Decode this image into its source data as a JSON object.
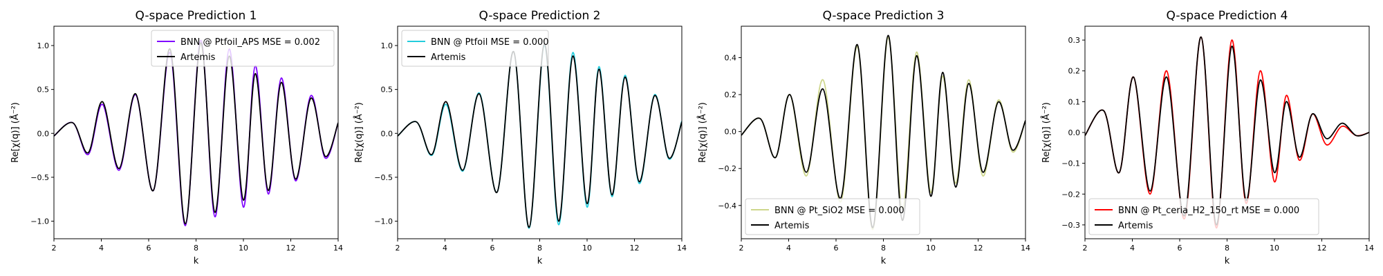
{
  "chart_data": [
    {
      "type": "line",
      "title": "Q-space Prediction 1",
      "xlabel": "k",
      "ylabel": "Re[χ(q)] (Å⁻²)",
      "xlim": [
        2,
        14
      ],
      "ylim": [
        -1.2,
        1.22
      ],
      "xticks": [
        2,
        4,
        6,
        8,
        10,
        12,
        14
      ],
      "yticks": [
        -1.0,
        -0.5,
        0.0,
        0.5,
        1.0
      ],
      "grid": false,
      "legend_loc": "upper right",
      "series": [
        {
          "name": "BNN @ Ptfoil_APS MSE = 0.002",
          "color": "#7f00ff",
          "x": [
            2,
            2.8,
            3.45,
            4.05,
            4.75,
            5.45,
            6.2,
            6.9,
            7.55,
            8.2,
            8.8,
            9.4,
            10.0,
            10.5,
            11.05,
            11.6,
            12.2,
            12.85,
            13.45,
            14
          ],
          "y": [
            -0.03,
            0.12,
            -0.24,
            0.33,
            -0.42,
            0.44,
            -0.65,
            0.92,
            -1.05,
            1.06,
            -0.95,
            0.96,
            -0.84,
            0.77,
            -0.69,
            0.63,
            -0.54,
            0.43,
            -0.28,
            0.12
          ]
        },
        {
          "name": "Artemis",
          "color": "#000000",
          "x": [
            2,
            2.8,
            3.45,
            4.05,
            4.75,
            5.45,
            6.2,
            6.9,
            7.55,
            8.2,
            8.8,
            9.4,
            10.0,
            10.5,
            11.05,
            11.6,
            12.2,
            12.85,
            13.45,
            14
          ],
          "y": [
            -0.03,
            0.12,
            -0.22,
            0.36,
            -0.4,
            0.45,
            -0.65,
            0.96,
            -1.03,
            1.03,
            -0.9,
            0.88,
            -0.76,
            0.68,
            -0.65,
            0.58,
            -0.52,
            0.4,
            -0.26,
            0.12
          ]
        }
      ]
    },
    {
      "type": "line",
      "title": "Q-space Prediction 2",
      "xlabel": "k",
      "ylabel": "Re[χ(q)] (Å⁻²)",
      "xlim": [
        2,
        14
      ],
      "ylim": [
        -1.2,
        1.22
      ],
      "xticks": [
        2,
        4,
        6,
        8,
        10,
        12,
        14
      ],
      "yticks": [
        -1.0,
        -0.5,
        0.0,
        0.5,
        1.0
      ],
      "grid": false,
      "legend_loc": "upper left",
      "series": [
        {
          "name": "BNN @ Ptfoil MSE = 0.000",
          "color": "#22ccdd",
          "x": [
            2,
            2.8,
            3.45,
            4.05,
            4.75,
            5.45,
            6.2,
            6.9,
            7.55,
            8.2,
            8.8,
            9.4,
            10.0,
            10.5,
            11.05,
            11.6,
            12.2,
            12.85,
            13.45,
            14
          ],
          "y": [
            -0.03,
            0.13,
            -0.25,
            0.33,
            -0.43,
            0.46,
            -0.67,
            0.93,
            -1.08,
            1.0,
            -1.04,
            0.92,
            -0.84,
            0.76,
            -0.72,
            0.66,
            -0.57,
            0.44,
            -0.29,
            0.14
          ]
        },
        {
          "name": "Artemis",
          "color": "#000000",
          "x": [
            2,
            2.8,
            3.45,
            4.05,
            4.75,
            5.45,
            6.2,
            6.9,
            7.55,
            8.2,
            8.8,
            9.4,
            10.0,
            10.5,
            11.05,
            11.6,
            12.2,
            12.85,
            13.45,
            14
          ],
          "y": [
            -0.03,
            0.13,
            -0.24,
            0.36,
            -0.42,
            0.45,
            -0.67,
            0.93,
            -1.07,
            1.02,
            -1.0,
            0.88,
            -0.8,
            0.73,
            -0.7,
            0.64,
            -0.55,
            0.43,
            -0.28,
            0.13
          ]
        }
      ]
    },
    {
      "type": "line",
      "title": "Q-space Prediction 3",
      "xlabel": "k",
      "ylabel": "Re[χ(q)] (Å⁻²)",
      "xlim": [
        2,
        14
      ],
      "ylim": [
        -0.58,
        0.57
      ],
      "xticks": [
        2,
        4,
        6,
        8,
        10,
        12,
        14
      ],
      "yticks": [
        -0.4,
        -0.2,
        0.0,
        0.2,
        0.4
      ],
      "grid": false,
      "legend_loc": "lower left",
      "series": [
        {
          "name": "BNN @ Pt_SiO2 MSE = 0.000",
          "color": "#cdd68a",
          "x": [
            2,
            2.8,
            3.45,
            4.05,
            4.75,
            5.45,
            6.2,
            6.9,
            7.55,
            8.2,
            8.8,
            9.4,
            10.0,
            10.5,
            11.05,
            11.6,
            12.2,
            12.85,
            13.45,
            14
          ],
          "y": [
            -0.02,
            0.07,
            -0.14,
            0.2,
            -0.24,
            0.28,
            -0.38,
            0.46,
            -0.53,
            0.51,
            -0.42,
            0.43,
            -0.33,
            0.3,
            -0.28,
            0.28,
            -0.24,
            0.17,
            -0.11,
            0.06
          ]
        },
        {
          "name": "Artemis",
          "color": "#000000",
          "x": [
            2,
            2.8,
            3.45,
            4.05,
            4.75,
            5.45,
            6.2,
            6.9,
            7.55,
            8.2,
            8.8,
            9.4,
            10.0,
            10.5,
            11.05,
            11.6,
            12.2,
            12.85,
            13.45,
            14
          ],
          "y": [
            -0.02,
            0.07,
            -0.14,
            0.2,
            -0.22,
            0.23,
            -0.36,
            0.47,
            -0.52,
            0.52,
            -0.48,
            0.41,
            -0.35,
            0.32,
            -0.3,
            0.26,
            -0.22,
            0.16,
            -0.1,
            0.06
          ]
        }
      ]
    },
    {
      "type": "line",
      "title": "Q-space Prediction 4",
      "xlabel": "k",
      "ylabel": "Re[χ(q)] (Å⁻²)",
      "xlim": [
        2,
        14
      ],
      "ylim": [
        -0.345,
        0.345
      ],
      "xticks": [
        2,
        4,
        6,
        8,
        10,
        12,
        14
      ],
      "yticks": [
        -0.3,
        -0.2,
        -0.1,
        0.0,
        0.1,
        0.2,
        0.3
      ],
      "grid": false,
      "legend_loc": "lower left",
      "series": [
        {
          "name": "BNN @ Pt_ceria_H2_150_rt MSE = 0.000",
          "color": "#ff0000",
          "x": [
            2,
            2.8,
            3.45,
            4.05,
            4.75,
            5.45,
            6.2,
            6.9,
            7.55,
            8.2,
            8.8,
            9.4,
            10.0,
            10.5,
            11.05,
            11.6,
            12.2,
            12.85,
            13.45,
            14
          ],
          "y": [
            -0.01,
            0.07,
            -0.13,
            0.18,
            -0.2,
            0.2,
            -0.28,
            0.31,
            -0.31,
            0.3,
            -0.23,
            0.2,
            -0.16,
            0.12,
            -0.09,
            0.06,
            -0.04,
            0.02,
            -0.01,
            0.0
          ]
        },
        {
          "name": "Artemis",
          "color": "#000000",
          "x": [
            2,
            2.8,
            3.45,
            4.05,
            4.75,
            5.45,
            6.2,
            6.9,
            7.55,
            8.2,
            8.8,
            9.4,
            10.0,
            10.5,
            11.05,
            11.6,
            12.2,
            12.85,
            13.45,
            14
          ],
          "y": [
            -0.01,
            0.07,
            -0.13,
            0.18,
            -0.19,
            0.18,
            -0.27,
            0.31,
            -0.3,
            0.28,
            -0.22,
            0.17,
            -0.13,
            0.1,
            -0.08,
            0.06,
            -0.02,
            0.03,
            -0.01,
            0.0
          ]
        }
      ]
    }
  ]
}
